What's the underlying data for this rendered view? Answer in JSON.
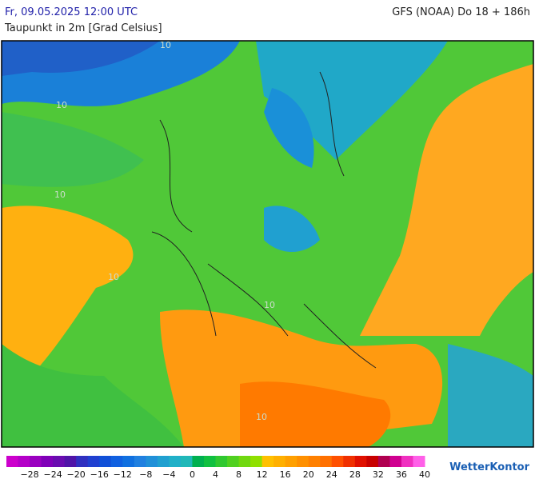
{
  "header": {
    "left_title": "Fr, 09.05.2025 12:00 UTC",
    "right_title": "GFS (NOAA) Do 18 + 186h",
    "subtitle": "Taupunkt in 2m [Grad Celsius]"
  },
  "map": {
    "contour_labels": [
      "10",
      "10",
      "10",
      "10",
      "10",
      "10"
    ]
  },
  "legend": {
    "colors": [
      "#cc00cc",
      "#b400c8",
      "#9a00c0",
      "#8000b8",
      "#6a0cb0",
      "#5014a8",
      "#3030c0",
      "#2040d0",
      "#1050d8",
      "#1060e0",
      "#1070e0",
      "#2080e0",
      "#2090d8",
      "#20a0d0",
      "#20b0c8",
      "#20b8b8",
      "#00b050",
      "#10c040",
      "#30c830",
      "#50d020",
      "#70d810",
      "#90e000",
      "#ffc000",
      "#ffb000",
      "#ffa000",
      "#ff9000",
      "#ff8000",
      "#ff7000",
      "#ff5000",
      "#f03000",
      "#e01000",
      "#c80000",
      "#b00050",
      "#d00090",
      "#f030c0",
      "#ff60e8"
    ],
    "labels": [
      "−28",
      "−24",
      "−20",
      "−16",
      "−12",
      "−8",
      "−4",
      "0",
      "4",
      "8",
      "12",
      "16",
      "20",
      "24",
      "28",
      "32",
      "36",
      "40"
    ]
  },
  "brand": "WetterKontor"
}
